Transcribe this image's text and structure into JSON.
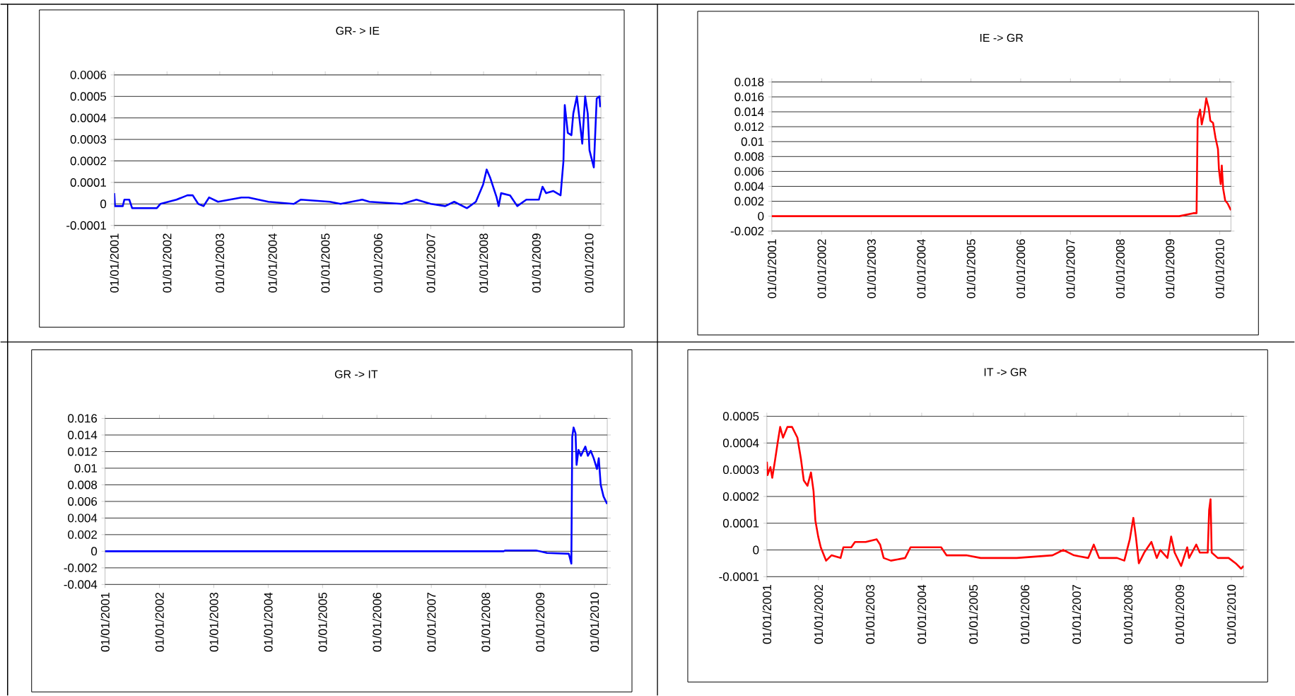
{
  "chart_data": [
    {
      "type": "line",
      "title": "GR- > IE",
      "color": "#0000ff",
      "grid": "y",
      "xlim": [
        "2001-01-01",
        "2010-03-24"
      ],
      "ylim": [
        -0.0001,
        0.0006
      ],
      "yticks": [
        -0.0001,
        0,
        0.0001,
        0.0002,
        0.0003,
        0.0004,
        0.0005,
        0.0006
      ],
      "xticks": [
        {
          "value": "2001-01-01",
          "label": "01/01/2001"
        },
        {
          "value": "2002-01-01",
          "label": "01/01/2002"
        },
        {
          "value": "2003-01-01",
          "label": "01/01/2003"
        },
        {
          "value": "2004-01-01",
          "label": "01/01/2004"
        },
        {
          "value": "2005-01-01",
          "label": "01/01/2005"
        },
        {
          "value": "2006-01-01",
          "label": "01/01/2006"
        },
        {
          "value": "2007-01-01",
          "label": "01/01/2007"
        },
        {
          "value": "2008-01-01",
          "label": "01/01/2008"
        },
        {
          "value": "2009-01-01",
          "label": "01/01/2009"
        },
        {
          "value": "2010-01-01",
          "label": "01/01/2010"
        }
      ],
      "x": [
        "2001-01-01",
        "2001-01-06",
        "2001-03-01",
        "2001-03-12",
        "2001-04-15",
        "2001-05-05",
        "2001-10-22",
        "2001-11-16",
        "2002-03-08",
        "2002-05-22",
        "2002-06-28",
        "2002-08-05",
        "2002-09-11",
        "2002-10-19",
        "2002-12-20",
        "2003-05-31",
        "2003-07-19",
        "2003-12-03",
        "2004-05-27",
        "2004-07-16",
        "2005-02-01",
        "2005-04-17",
        "2005-09-14",
        "2005-11-02",
        "2006-06-16",
        "2006-09-24",
        "2007-01-01",
        "2007-04-11",
        "2007-06-12",
        "2007-09-08",
        "2007-11-09",
        "2007-12-29",
        "2008-01-23",
        "2008-02-17",
        "2008-04-01",
        "2008-04-15",
        "2008-05-02",
        "2008-07-03",
        "2008-08-22",
        "2008-10-24",
        "2009-01-19",
        "2009-02-13",
        "2009-03-10",
        "2009-04-29",
        "2009-06-18",
        "2009-07-08",
        "2009-07-17",
        "2009-08-07",
        "2009-09-01",
        "2009-09-14",
        "2009-10-09",
        "2009-10-26",
        "2009-11-15",
        "2009-12-05",
        "2009-12-23",
        "2010-01-04",
        "2010-02-03",
        "2010-02-23",
        "2010-03-14",
        "2010-03-19"
      ],
      "values": [
        5e-05,
        -1e-05,
        -1e-05,
        2e-05,
        2e-05,
        -2e-05,
        -2e-05,
        0,
        2e-05,
        4e-05,
        4e-05,
        0,
        -1e-05,
        3e-05,
        1e-05,
        3e-05,
        3e-05,
        1e-05,
        0,
        2e-05,
        1e-05,
        0,
        2e-05,
        1e-05,
        0,
        2e-05,
        0,
        -1e-05,
        1e-05,
        -2e-05,
        1e-05,
        9e-05,
        0.00016,
        0.00012,
        3e-05,
        -1e-05,
        5e-05,
        4e-05,
        -1e-05,
        2e-05,
        2e-05,
        8e-05,
        5e-05,
        6e-05,
        4e-05,
        0.0002,
        0.00046,
        0.00033,
        0.00032,
        0.00042,
        0.0005,
        0.0004,
        0.00028,
        0.0005,
        0.00042,
        0.00025,
        0.00017,
        0.00049,
        0.0005,
        0.00045
      ]
    },
    {
      "type": "line",
      "title": "IE -> GR",
      "color": "#ff0000",
      "grid": "y",
      "xlim": [
        "2001-01-01",
        "2010-03-24"
      ],
      "ylim": [
        -0.002,
        0.018
      ],
      "yticks": [
        -0.002,
        0,
        0.002,
        0.004,
        0.006,
        0.008,
        0.01,
        0.012,
        0.014,
        0.016,
        0.018
      ],
      "xticks": [
        {
          "value": "2001-01-01",
          "label": "01/01/2001"
        },
        {
          "value": "2002-01-01",
          "label": "01/01/2002"
        },
        {
          "value": "2003-01-01",
          "label": "01/01/2003"
        },
        {
          "value": "2004-01-01",
          "label": "01/01/2004"
        },
        {
          "value": "2005-01-01",
          "label": "01/01/2005"
        },
        {
          "value": "2006-01-01",
          "label": "01/01/2006"
        },
        {
          "value": "2007-01-01",
          "label": "01/01/2007"
        },
        {
          "value": "2008-01-01",
          "label": "01/01/2008"
        },
        {
          "value": "2009-01-01",
          "label": "01/01/2009"
        },
        {
          "value": "2010-01-01",
          "label": "01/01/2010"
        }
      ],
      "x": [
        "2001-01-01",
        "2005-11-07",
        "2006-12-01",
        "2009-03-10",
        "2009-06-21",
        "2009-07-15",
        "2009-07-23",
        "2009-08-10",
        "2009-08-22",
        "2009-09-09",
        "2009-09-24",
        "2009-10-12",
        "2009-10-24",
        "2009-11-13",
        "2009-12-01",
        "2009-12-19",
        "2009-12-26",
        "2010-01-08",
        "2010-01-16",
        "2010-01-26",
        "2010-02-10",
        "2010-02-28",
        "2010-03-24"
      ],
      "values": [
        0,
        0,
        0,
        0,
        0.0004,
        0.0004,
        0.013,
        0.0143,
        0.0123,
        0.0138,
        0.0158,
        0.0145,
        0.0128,
        0.0125,
        0.0105,
        0.009,
        0.0063,
        0.0043,
        0.0068,
        0.0037,
        0.0021,
        0.0017,
        0.0008
      ]
    },
    {
      "type": "line",
      "title": "GR -> IT",
      "color": "#0000ff",
      "grid": "y",
      "xlim": [
        "2001-01-01",
        "2010-03-28"
      ],
      "ylim": [
        -0.004,
        0.016
      ],
      "yticks": [
        -0.004,
        -0.002,
        0,
        0.002,
        0.004,
        0.006,
        0.008,
        0.01,
        0.012,
        0.014,
        0.016
      ],
      "xticks": [
        {
          "value": "2001-01-01",
          "label": "01/01/2001"
        },
        {
          "value": "2002-01-01",
          "label": "01/01/2002"
        },
        {
          "value": "2003-01-01",
          "label": "01/01/2003"
        },
        {
          "value": "2004-01-01",
          "label": "01/01/2004"
        },
        {
          "value": "2005-01-01",
          "label": "01/01/2005"
        },
        {
          "value": "2006-01-01",
          "label": "01/01/2006"
        },
        {
          "value": "2007-01-01",
          "label": "01/01/2007"
        },
        {
          "value": "2008-01-01",
          "label": "01/01/2008"
        },
        {
          "value": "2009-01-01",
          "label": "01/01/2009"
        },
        {
          "value": "2010-01-01",
          "label": "01/01/2010"
        }
      ],
      "x": [
        "2001-01-01",
        "2008-05-01",
        "2008-05-12",
        "2008-12-05",
        "2009-02-16",
        "2009-07-13",
        "2009-07-30",
        "2009-08-05",
        "2009-08-14",
        "2009-08-27",
        "2009-09-03",
        "2009-09-16",
        "2009-10-02",
        "2009-11-01",
        "2009-11-18",
        "2009-12-07",
        "2009-12-27",
        "2010-01-18",
        "2010-01-30",
        "2010-02-12",
        "2010-03-03",
        "2010-03-27"
      ],
      "values": [
        0,
        0,
        0.0001,
        0.0001,
        -0.0002,
        -0.0003,
        -0.0015,
        0.0138,
        0.0149,
        0.0142,
        0.0104,
        0.0122,
        0.0115,
        0.0126,
        0.0115,
        0.0121,
        0.0112,
        0.0099,
        0.0112,
        0.008,
        0.0066,
        0.0057
      ]
    },
    {
      "type": "line",
      "title": "IT -> GR",
      "color": "#ff0000",
      "grid": "y",
      "xlim": [
        "2001-01-01",
        "2010-03-29"
      ],
      "ylim": [
        -0.0001,
        0.0005
      ],
      "yticks": [
        -0.0001,
        0,
        0.0001,
        0.0002,
        0.0003,
        0.0004,
        0.0005
      ],
      "xticks": [
        {
          "value": "2001-01-01",
          "label": "01/01/2001"
        },
        {
          "value": "2002-01-01",
          "label": "01/01/2002"
        },
        {
          "value": "2003-01-01",
          "label": "01/01/2003"
        },
        {
          "value": "2004-01-01",
          "label": "01/01/2004"
        },
        {
          "value": "2005-01-01",
          "label": "01/01/2005"
        },
        {
          "value": "2006-01-01",
          "label": "01/01/2006"
        },
        {
          "value": "2007-01-01",
          "label": "01/01/2007"
        },
        {
          "value": "2008-01-01",
          "label": "01/01/2008"
        },
        {
          "value": "2009-01-01",
          "label": "01/01/2009"
        },
        {
          "value": "2010-01-01",
          "label": "01/01/2010"
        }
      ],
      "x": [
        "2001-01-01",
        "2001-01-06",
        "2001-01-26",
        "2001-02-08",
        "2001-03-01",
        "2001-03-18",
        "2001-04-05",
        "2001-04-25",
        "2001-05-26",
        "2001-06-28",
        "2001-08-05",
        "2001-08-30",
        "2001-09-19",
        "2001-10-15",
        "2001-11-09",
        "2001-11-27",
        "2001-12-10",
        "2001-12-30",
        "2002-01-17",
        "2002-02-24",
        "2002-04-03",
        "2002-06-06",
        "2002-06-26",
        "2002-07-27",
        "2002-08-21",
        "2002-09-16",
        "2002-12-01",
        "2003-02-16",
        "2003-03-13",
        "2003-04-07",
        "2003-05-28",
        "2003-09-06",
        "2003-10-14",
        "2004-01-11",
        "2004-05-18",
        "2004-06-25",
        "2004-11-12",
        "2005-02-22",
        "2005-11-03",
        "2006-07-15",
        "2006-09-29",
        "2006-12-14",
        "2007-03-25",
        "2007-05-03",
        "2007-06-10",
        "2007-10-15",
        "2007-12-05",
        "2008-01-13",
        "2008-02-07",
        "2008-02-25",
        "2008-03-17",
        "2008-04-24",
        "2008-06-14",
        "2008-07-22",
        "2008-08-16",
        "2008-10-06",
        "2008-11-01",
        "2008-11-26",
        "2009-01-11",
        "2009-02-23",
        "2009-03-08",
        "2009-04-28",
        "2009-05-23",
        "2009-07-18",
        "2009-07-28",
        "2009-08-07",
        "2009-08-15",
        "2009-09-27",
        "2009-12-13",
        "2010-02-01",
        "2010-03-11",
        "2010-03-29"
      ],
      "values": [
        0.00033,
        0.00028,
        0.00031,
        0.00027,
        0.00034,
        0.0004,
        0.00046,
        0.00042,
        0.00046,
        0.00046,
        0.00042,
        0.00034,
        0.00026,
        0.00024,
        0.00029,
        0.00022,
        0.00011,
        5e-05,
        1e-05,
        -4e-05,
        -2e-05,
        -3e-05,
        1e-05,
        1e-05,
        1e-05,
        3e-05,
        3e-05,
        4e-05,
        2e-05,
        -3e-05,
        -4e-05,
        -3e-05,
        1e-05,
        1e-05,
        1e-05,
        -2e-05,
        -2e-05,
        -3e-05,
        -3e-05,
        -2e-05,
        0,
        -2e-05,
        -3e-05,
        2e-05,
        -3e-05,
        -3e-05,
        -4e-05,
        4e-05,
        0.00012,
        5e-05,
        -5e-05,
        -1e-05,
        3e-05,
        -3e-05,
        0,
        -3e-05,
        5e-05,
        -1e-05,
        -6e-05,
        1e-05,
        -3e-05,
        2e-05,
        -1e-05,
        -1e-05,
        0.00015,
        0.00019,
        -1e-05,
        -3e-05,
        -3e-05,
        -5e-05,
        -7e-05,
        -6e-05
      ]
    }
  ]
}
